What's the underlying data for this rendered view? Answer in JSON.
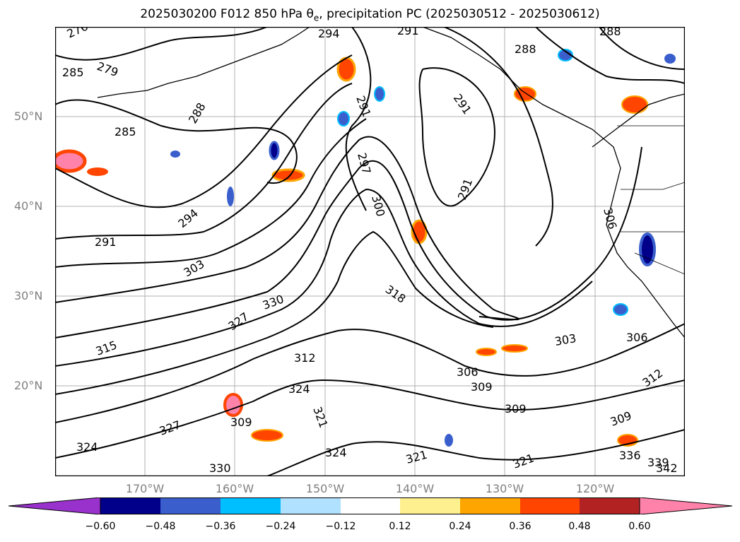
{
  "title_main": "2025030200 F012 850 hPa θ",
  "title_sub": "e",
  "title_rest": ", precipitation PC (2025030512 - 2025030612)",
  "lat_labels": [
    "50°N",
    "40°N",
    "30°N",
    "20°N"
  ],
  "lon_labels": [
    "170°W",
    "160°W",
    "150°W",
    "140°W",
    "130°W",
    "120°W"
  ],
  "contour_labels": [
    "276",
    "294",
    "291",
    "288",
    "288",
    "279",
    "285",
    "285",
    "288",
    "291",
    "291",
    "297",
    "300",
    "291",
    "294",
    "291",
    "306",
    "303",
    "330",
    "318",
    "327",
    "315",
    "312",
    "306",
    "303",
    "306",
    "309",
    "312",
    "309",
    "324",
    "321",
    "321",
    "309",
    "327",
    "324",
    "330",
    "324",
    "321",
    "309",
    "342",
    "336",
    "339"
  ],
  "colorbar": {
    "ticks": [
      "−0.60",
      "−0.48",
      "−0.36",
      "−0.24",
      "−0.12",
      "0.12",
      "0.24",
      "0.36",
      "0.48",
      "0.60"
    ],
    "colors": [
      "#9932cc",
      "#00008b",
      "#3a5fcd",
      "#00bfff",
      "#b0e2ff",
      "#ffffff",
      "#fff08f",
      "#ffa500",
      "#ff4500",
      "#b22222",
      "#ff82ab"
    ]
  }
}
